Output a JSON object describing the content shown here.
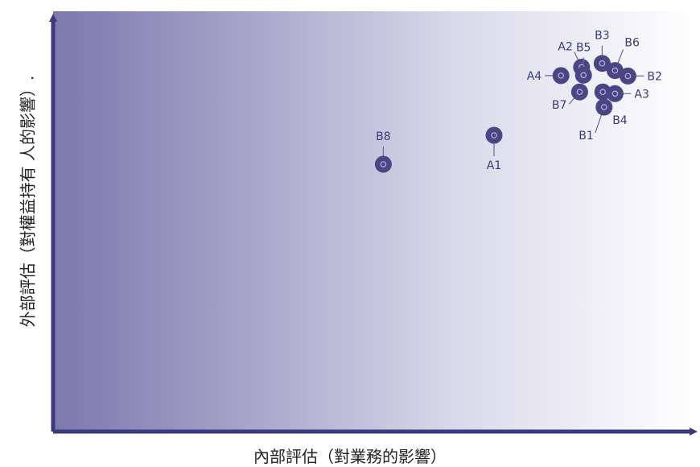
{
  "colors": {
    "point": "#4a4585",
    "point_ring": "#b9b7d8",
    "leader": "#6b6a90",
    "axis": "#3c3a7e",
    "gradient_dark": "#7b78ad",
    "gradient_light": "#ffffff"
  },
  "chart_data": {
    "type": "scatter",
    "xlabel": "內部評估（對業務的影響）",
    "ylabel": "外部評估（對權益持有 人的影響）.",
    "xlim": [
      0,
      100
    ],
    "ylim": [
      0,
      100
    ],
    "grid": false,
    "points": [
      {
        "label": "A1",
        "x": 68.5,
        "y": 70.5,
        "label_side": "below"
      },
      {
        "label": "B8",
        "x": 51.3,
        "y": 63.6,
        "label_side": "above"
      },
      {
        "label": "A4",
        "x": 78.9,
        "y": 84.7,
        "label_side": "left"
      },
      {
        "label": "A2",
        "x": 82.1,
        "y": 86.7,
        "label_side": "upper-left"
      },
      {
        "label": "B5",
        "x": 82.4,
        "y": 84.8,
        "label_side": "above"
      },
      {
        "label": "B7",
        "x": 81.8,
        "y": 80.8,
        "label_side": "lower-left"
      },
      {
        "label": "B3",
        "x": 85.3,
        "y": 87.6,
        "label_side": "above"
      },
      {
        "label": "B6",
        "x": 87.3,
        "y": 85.9,
        "label_side": "upper-right"
      },
      {
        "label": "B2",
        "x": 89.3,
        "y": 84.6,
        "label_side": "right"
      },
      {
        "label": "A3",
        "x": 87.3,
        "y": 80.4,
        "label_side": "right"
      },
      {
        "label": "B4",
        "x": 85.4,
        "y": 80.8,
        "label_side": "below-right"
      },
      {
        "label": "B1",
        "x": 85.6,
        "y": 77.2,
        "label_side": "below-left"
      }
    ]
  }
}
